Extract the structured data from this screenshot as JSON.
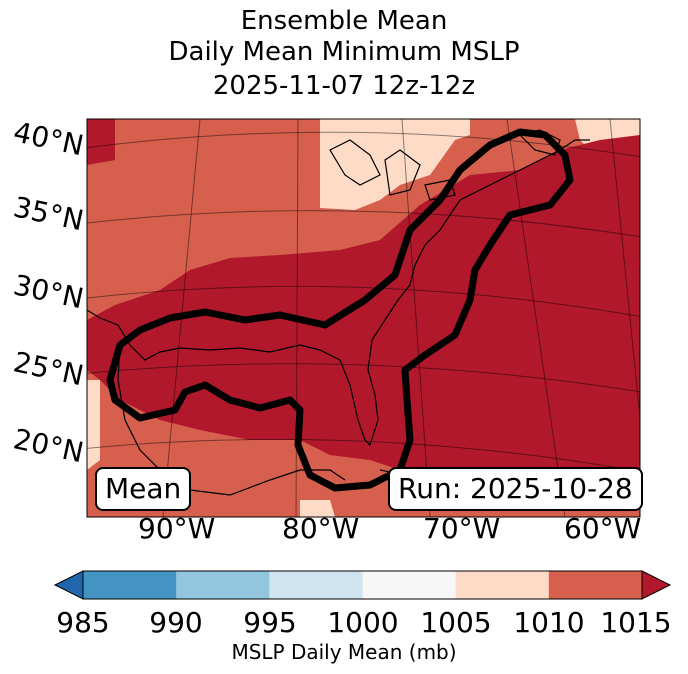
{
  "title": {
    "line1": "Ensemble Mean",
    "line2": "Daily Mean Minimum MSLP",
    "line3": "2025-11-07 12z-12z"
  },
  "map": {
    "lat_labels": [
      "40°N",
      "35°N",
      "30°N",
      "25°N",
      "20°N"
    ],
    "lon_labels": [
      "90°W",
      "80°W",
      "70°W",
      "60°W"
    ],
    "mean_label": "Mean",
    "run_label": "Run: 2025-10-28"
  },
  "colorbar": {
    "ticks": [
      "985",
      "990",
      "995",
      "1000",
      "1005",
      "1010",
      "1015"
    ],
    "label": "MSLP Daily Mean (mb)",
    "colors": [
      "#4393c3",
      "#92c5de",
      "#d1e5f0",
      "#f7f7f7",
      "#fddbc7",
      "#d6604d",
      "#b2182b"
    ],
    "under_color": "#2166ac",
    "over_color": "#b2182b"
  }
}
